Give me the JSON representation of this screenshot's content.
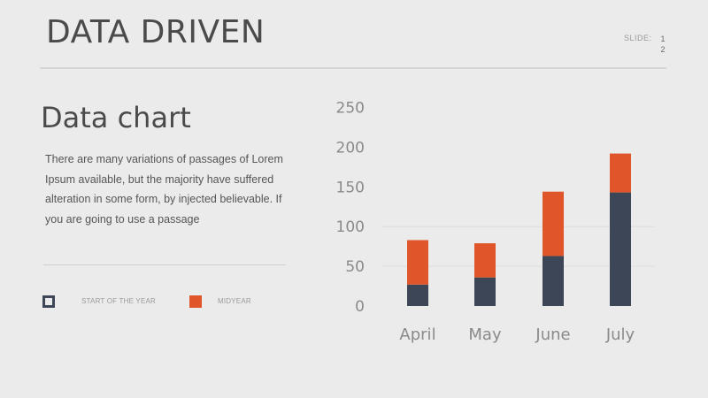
{
  "slide": {
    "title": "DATA DRIVEN",
    "slide_label": "SLIDE:",
    "slide_number": "1\n2"
  },
  "content": {
    "heading": "Data chart",
    "paragraph": "There are many variations of passages of Lorem Ipsum available, but the majority have suffered alteration in some form, by injected believable. If you are going to use a passage"
  },
  "legend": {
    "items": [
      {
        "label": "START OF THE YEAR",
        "color": "#3d4656"
      },
      {
        "label": "MIDYEAR",
        "color": "#e0562a"
      }
    ]
  },
  "colors": {
    "series_start": "#3d4656",
    "series_mid": "#e0562a",
    "grid": "#dcdcdc"
  },
  "chart_data": {
    "type": "bar",
    "stacked": true,
    "categories": [
      "April",
      "May",
      "June",
      "July"
    ],
    "series": [
      {
        "name": "START OF THE YEAR",
        "values": [
          27,
          36,
          63,
          143
        ]
      },
      {
        "name": "MIDYEAR",
        "values": [
          56,
          43,
          81,
          49
        ]
      }
    ],
    "ylim": [
      0,
      250
    ],
    "yticks": [
      0,
      50,
      100,
      150,
      200,
      250
    ],
    "title": "",
    "xlabel": "",
    "ylabel": "",
    "grid": true,
    "legend_position": "bottom-left"
  }
}
